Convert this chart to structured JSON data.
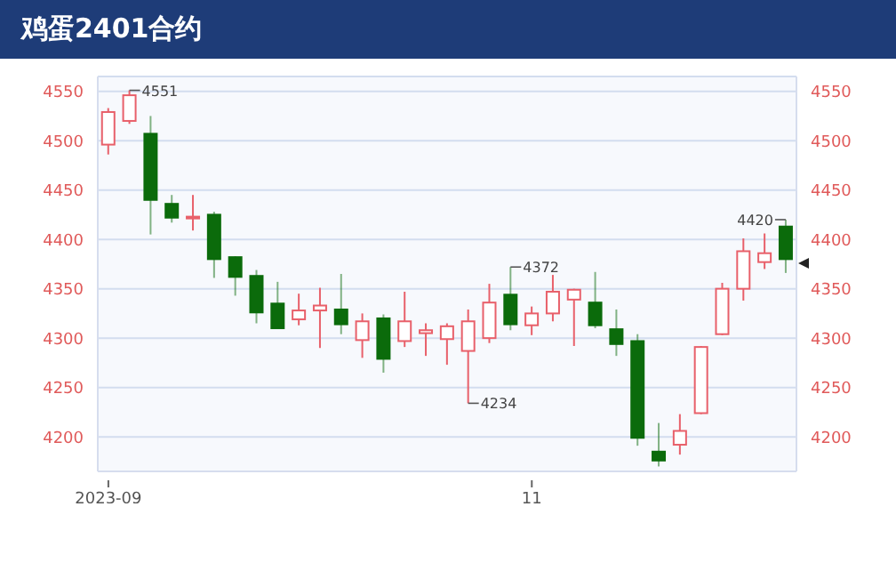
{
  "chart_data": {
    "type": "candlestick",
    "title": "鸡蛋2401合约",
    "categories": [
      "2023-09",
      null,
      null,
      null,
      null,
      null,
      null,
      null,
      null,
      null,
      null,
      null,
      null,
      null,
      null,
      null,
      null,
      null,
      null,
      null,
      "11",
      null,
      null,
      null,
      null,
      null,
      null,
      null,
      null,
      null,
      null,
      null,
      null
    ],
    "ohlc": [
      [
        4496,
        4533,
        4486,
        4529
      ],
      [
        4520,
        4551,
        4517,
        4546
      ],
      [
        4507,
        4525,
        4405,
        4440
      ],
      [
        4436,
        4445,
        4417,
        4422
      ],
      [
        4422,
        4445,
        4409,
        4423
      ],
      [
        4425,
        4428,
        4361,
        4380
      ],
      [
        4382,
        4383,
        4343,
        4362
      ],
      [
        4363,
        4369,
        4315,
        4326
      ],
      [
        4335,
        4357,
        4310,
        4310
      ],
      [
        4319,
        4345,
        4313,
        4328
      ],
      [
        4328,
        4351,
        4290,
        4333
      ],
      [
        4329,
        4365,
        4304,
        4314
      ],
      [
        4298,
        4325,
        4280,
        4317
      ],
      [
        4320,
        4324,
        4265,
        4279
      ],
      [
        4297,
        4347,
        4291,
        4317
      ],
      [
        4305,
        4315,
        4282,
        4308
      ],
      [
        4299,
        4315,
        4273,
        4312
      ],
      [
        4287,
        4329,
        4234,
        4317
      ],
      [
        4300,
        4355,
        4295,
        4336
      ],
      [
        4344,
        4372,
        4308,
        4314
      ],
      [
        4313,
        4332,
        4303,
        4325
      ],
      [
        4325,
        4364,
        4317,
        4347
      ],
      [
        4339,
        4350,
        4292,
        4349
      ],
      [
        4336,
        4367,
        4310,
        4313
      ],
      [
        4309,
        4329,
        4282,
        4294
      ],
      [
        4297,
        4304,
        4191,
        4199
      ],
      [
        4185,
        4214,
        4170,
        4176
      ],
      [
        4192,
        4223,
        4182,
        4206
      ],
      [
        4224,
        4292,
        4223,
        4291
      ],
      [
        4304,
        4356,
        4303,
        4350
      ],
      [
        4350,
        4401,
        4338,
        4388
      ],
      [
        4377,
        4406,
        4370,
        4386
      ],
      [
        4413,
        4420,
        4366,
        4380
      ]
    ],
    "colors": [
      "#e8606a",
      "#e8606a",
      "#0b6b0b",
      "#0b6b0b",
      "#e8606a",
      "#0b6b0b",
      "#0b6b0b",
      "#0b6b0b",
      "#0b6b0b",
      "#e8606a",
      "#e8606a",
      "#0b6b0b",
      "#e8606a",
      "#0b6b0b",
      "#e8606a",
      "#e8606a",
      "#e8606a",
      "#e8606a",
      "#e8606a",
      "#0b6b0b",
      "#e8606a",
      "#e8606a",
      "#e8606a",
      "#0b6b0b",
      "#0b6b0b",
      "#0b6b0b",
      "#0b6b0b",
      "#e8606a",
      "#e8606a",
      "#e8606a",
      "#e8606a",
      "#e8606a",
      "#0b6b0b"
    ],
    "ylim": [
      4165,
      4565
    ],
    "yticks": [
      4200,
      4250,
      4300,
      4350,
      4400,
      4450,
      4500,
      4550
    ],
    "y2lim": [
      4165,
      4565
    ],
    "y2ticks": [
      4200,
      4250,
      4300,
      4350,
      4400,
      4450,
      4500,
      4550
    ],
    "grid": "y",
    "annotations": [
      "4551",
      "4234",
      "4372",
      "4420"
    ]
  }
}
